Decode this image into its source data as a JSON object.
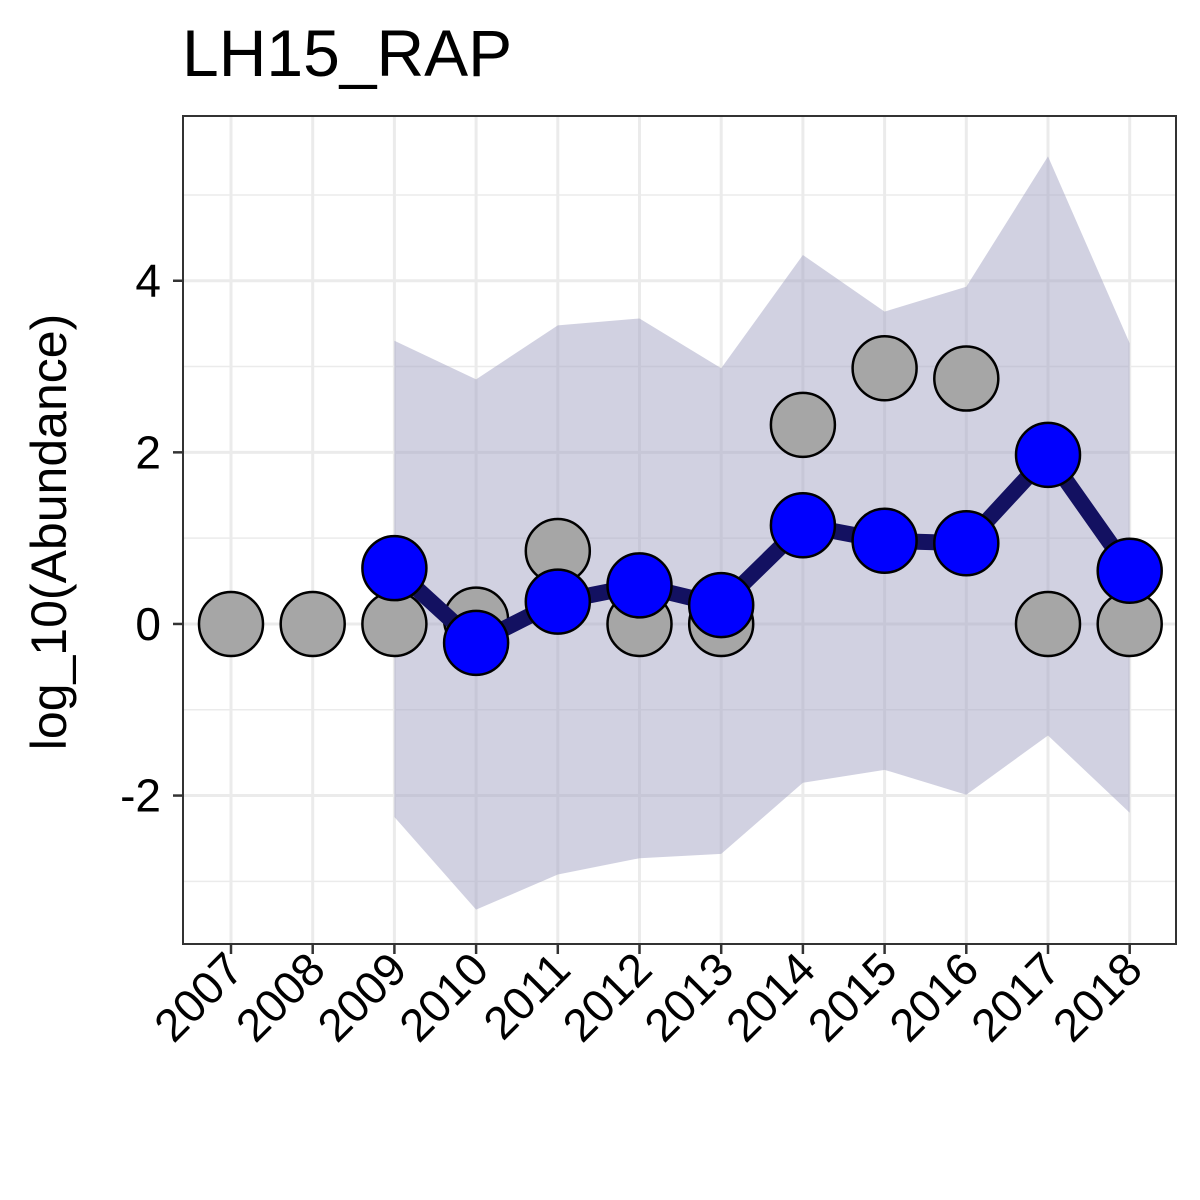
{
  "chart_data": {
    "type": "line",
    "title": "LH15_RAP",
    "xlabel": "",
    "ylabel": "log_10(Abundance)",
    "x": [
      2007,
      2008,
      2009,
      2010,
      2011,
      2012,
      2013,
      2014,
      2015,
      2016,
      2017,
      2018
    ],
    "x_tick_labels": [
      "2007",
      "2008",
      "2009",
      "2010",
      "2011",
      "2012",
      "2013",
      "2014",
      "2015",
      "2016",
      "2017",
      "2018"
    ],
    "y_ticks": [
      -2,
      0,
      2,
      4
    ],
    "y_tick_labels": [
      "-2",
      "0",
      "2",
      "4"
    ],
    "ylim": [
      -3.73,
      5.92
    ],
    "grid": true,
    "series": [
      {
        "kind": "points",
        "color": "#a6a6a6",
        "x": [
          2007,
          2008,
          2009,
          2010,
          2011,
          2012,
          2013,
          2014,
          2015,
          2016,
          2017,
          2018
        ],
        "values": [
          0,
          0,
          0,
          0.05,
          0.85,
          0,
          0,
          2.32,
          2.98,
          2.86,
          0,
          0
        ]
      },
      {
        "kind": "line+points",
        "color": "#0000ff",
        "line_color": "#131161",
        "x": [
          2009,
          2010,
          2011,
          2012,
          2013,
          2014,
          2015,
          2016,
          2017,
          2018
        ],
        "values": [
          0.65,
          -0.22,
          0.26,
          0.45,
          0.22,
          1.15,
          0.97,
          0.94,
          1.97,
          0.62
        ]
      }
    ],
    "ribbon": {
      "color": "#a3a3c4",
      "x": [
        2009,
        2010,
        2011,
        2012,
        2013,
        2014,
        2015,
        2016,
        2017,
        2018
      ],
      "lower": [
        -2.25,
        -3.33,
        -2.92,
        -2.73,
        -2.68,
        -1.85,
        -1.7,
        -1.99,
        -1.3,
        -2.2
      ],
      "upper": [
        3.3,
        2.85,
        3.48,
        3.56,
        2.98,
        4.3,
        3.64,
        3.93,
        5.45,
        3.27
      ]
    }
  }
}
